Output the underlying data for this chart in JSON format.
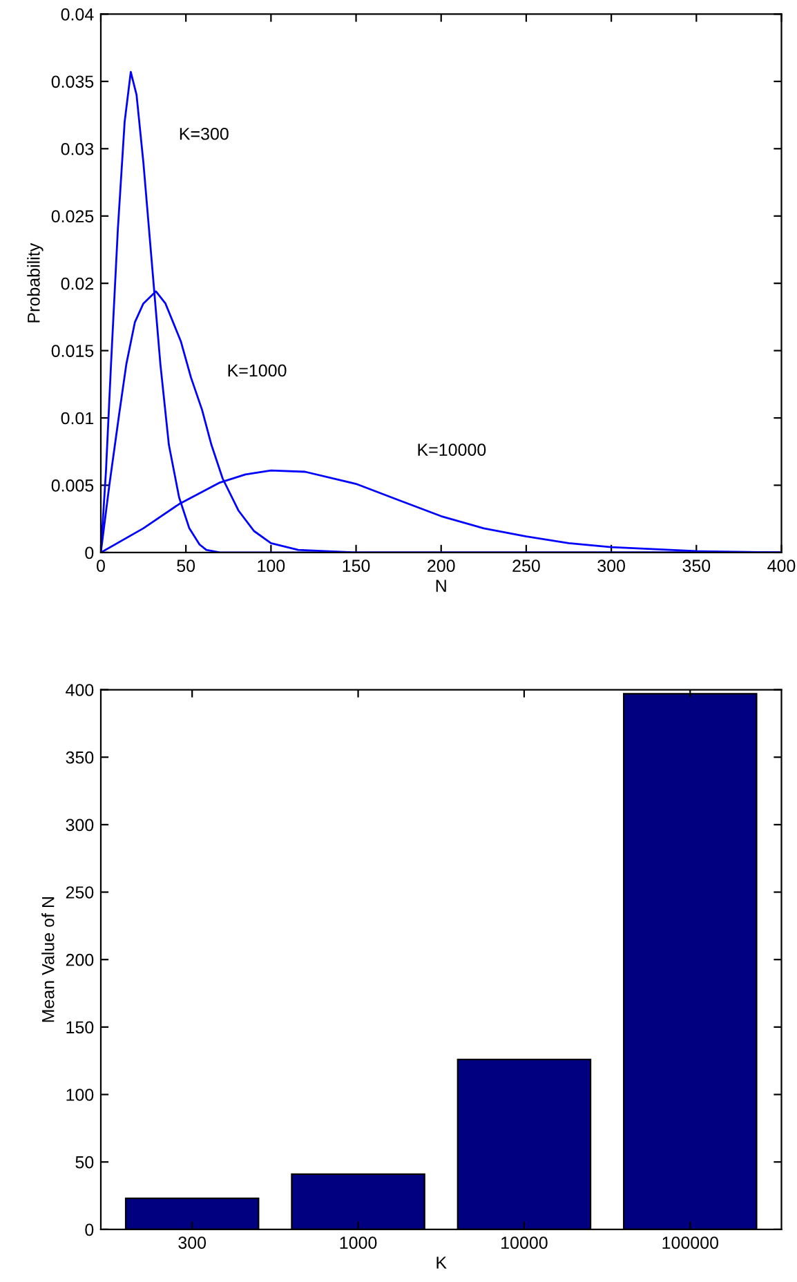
{
  "chart_data": [
    {
      "type": "line",
      "xlabel": "N",
      "ylabel": "Probability",
      "xlim": [
        0,
        400
      ],
      "ylim": [
        0,
        0.04
      ],
      "xticks": [
        0,
        50,
        100,
        150,
        200,
        250,
        300,
        350,
        400
      ],
      "yticks": [
        0,
        0.005,
        0.01,
        0.015,
        0.02,
        0.025,
        0.03,
        0.035,
        0.04
      ],
      "grid": false,
      "legend": false,
      "marker": "none",
      "line_style": "solid",
      "series": [
        {
          "name": "K=300",
          "color": "#0000ff",
          "x": [
            0,
            3,
            6,
            10,
            14,
            17.6,
            21,
            25,
            31,
            35,
            40,
            46,
            52,
            58,
            62,
            70,
            400
          ],
          "values": [
            0,
            0.006,
            0.014,
            0.024,
            0.032,
            0.0357,
            0.034,
            0.029,
            0.02,
            0.014,
            0.008,
            0.0041,
            0.0018,
            0.0006,
            0.0002,
            0,
            0
          ]
        },
        {
          "name": "K=1000",
          "color": "#0000ff",
          "x": [
            0,
            5,
            10.8,
            15,
            20,
            25,
            32.4,
            38,
            47,
            53,
            59.5,
            65,
            71.6,
            81,
            90,
            100,
            116,
            150,
            400
          ],
          "values": [
            0,
            0.005,
            0.0103,
            0.014,
            0.0171,
            0.0185,
            0.0194,
            0.0185,
            0.0157,
            0.013,
            0.0106,
            0.008,
            0.0055,
            0.0031,
            0.0016,
            0.0007,
            0.0002,
            0,
            0
          ]
        },
        {
          "name": "K=10000",
          "color": "#0000ff",
          "x": [
            0,
            25,
            46,
            70,
            85,
            100,
            120,
            150,
            175,
            200,
            225,
            250,
            275,
            300,
            350,
            400
          ],
          "values": [
            0,
            0.0018,
            0.0036,
            0.0052,
            0.0058,
            0.0061,
            0.006,
            0.0051,
            0.0039,
            0.0027,
            0.0018,
            0.0012,
            0.0007,
            0.0004,
            0.0001,
            0
          ]
        }
      ]
    },
    {
      "type": "bar",
      "xlabel": "K",
      "ylabel": "Mean Value of N",
      "categories": [
        "300",
        "1000",
        "10000",
        "100000"
      ],
      "values": [
        23,
        41,
        126,
        397
      ],
      "color": "#000080",
      "ylim": [
        0,
        400
      ],
      "yticks": [
        0,
        50,
        100,
        150,
        200,
        250,
        300,
        350,
        400
      ],
      "grid": false,
      "legend": false
    }
  ]
}
